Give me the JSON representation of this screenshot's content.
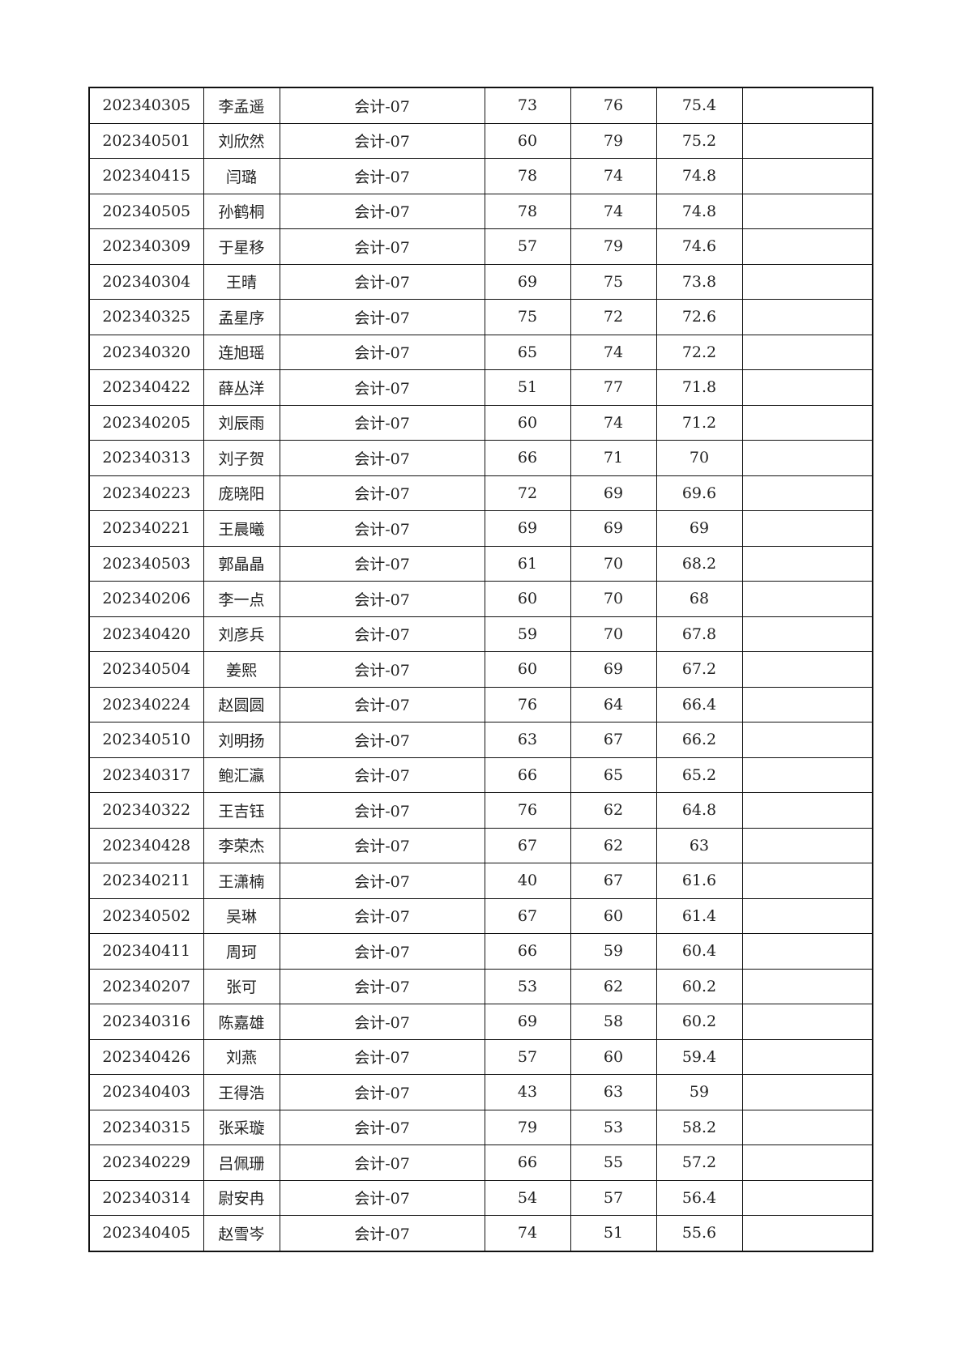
{
  "rows": [
    [
      "202340305",
      "李孟遥",
      "会计-07",
      "73",
      "76",
      "75.4",
      ""
    ],
    [
      "202340501",
      "刘欣然",
      "会计-07",
      "60",
      "79",
      "75.2",
      ""
    ],
    [
      "202340415",
      "闫璐",
      "会计-07",
      "78",
      "74",
      "74.8",
      ""
    ],
    [
      "202340505",
      "孙鹤桐",
      "会计-07",
      "78",
      "74",
      "74.8",
      ""
    ],
    [
      "202340309",
      "于星移",
      "会计-07",
      "57",
      "79",
      "74.6",
      ""
    ],
    [
      "202340304",
      "王晴",
      "会计-07",
      "69",
      "75",
      "73.8",
      ""
    ],
    [
      "202340325",
      "孟星序",
      "会计-07",
      "75",
      "72",
      "72.6",
      ""
    ],
    [
      "202340320",
      "连旭瑶",
      "会计-07",
      "65",
      "74",
      "72.2",
      ""
    ],
    [
      "202340422",
      "薛丛洋",
      "会计-07",
      "51",
      "77",
      "71.8",
      ""
    ],
    [
      "202340205",
      "刘辰雨",
      "会计-07",
      "60",
      "74",
      "71.2",
      ""
    ],
    [
      "202340313",
      "刘子贺",
      "会计-07",
      "66",
      "71",
      "70",
      ""
    ],
    [
      "202340223",
      "庞晓阳",
      "会计-07",
      "72",
      "69",
      "69.6",
      ""
    ],
    [
      "202340221",
      "王晨曦",
      "会计-07",
      "69",
      "69",
      "69",
      ""
    ],
    [
      "202340503",
      "郭晶晶",
      "会计-07",
      "61",
      "70",
      "68.2",
      ""
    ],
    [
      "202340206",
      "李一点",
      "会计-07",
      "60",
      "70",
      "68",
      ""
    ],
    [
      "202340420",
      "刘彦兵",
      "会计-07",
      "59",
      "70",
      "67.8",
      ""
    ],
    [
      "202340504",
      "姜熙",
      "会计-07",
      "60",
      "69",
      "67.2",
      ""
    ],
    [
      "202340224",
      "赵圆圆",
      "会计-07",
      "76",
      "64",
      "66.4",
      ""
    ],
    [
      "202340510",
      "刘明扬",
      "会计-07",
      "63",
      "67",
      "66.2",
      ""
    ],
    [
      "202340317",
      "鲍汇瀛",
      "会计-07",
      "66",
      "65",
      "65.2",
      ""
    ],
    [
      "202340322",
      "王吉钰",
      "会计-07",
      "76",
      "62",
      "64.8",
      ""
    ],
    [
      "202340428",
      "李荣杰",
      "会计-07",
      "67",
      "62",
      "63",
      ""
    ],
    [
      "202340211",
      "王潇楠",
      "会计-07",
      "40",
      "67",
      "61.6",
      ""
    ],
    [
      "202340502",
      "吴琳",
      "会计-07",
      "67",
      "60",
      "61.4",
      ""
    ],
    [
      "202340411",
      "周珂",
      "会计-07",
      "66",
      "59",
      "60.4",
      ""
    ],
    [
      "202340207",
      "张可",
      "会计-07",
      "53",
      "62",
      "60.2",
      ""
    ],
    [
      "202340316",
      "陈嘉雄",
      "会计-07",
      "69",
      "58",
      "60.2",
      ""
    ],
    [
      "202340426",
      "刘燕",
      "会计-07",
      "57",
      "60",
      "59.4",
      ""
    ],
    [
      "202340403",
      "王得浩",
      "会计-07",
      "43",
      "63",
      "59",
      ""
    ],
    [
      "202340315",
      "张采璇",
      "会计-07",
      "79",
      "53",
      "58.2",
      ""
    ],
    [
      "202340229",
      "吕佩珊",
      "会计-07",
      "66",
      "55",
      "57.2",
      ""
    ],
    [
      "202340314",
      "尉安冉",
      "会计-07",
      "54",
      "57",
      "56.4",
      ""
    ],
    [
      "202340405",
      "赵雪岑",
      "会计-07",
      "74",
      "51",
      "55.6",
      ""
    ]
  ]
}
